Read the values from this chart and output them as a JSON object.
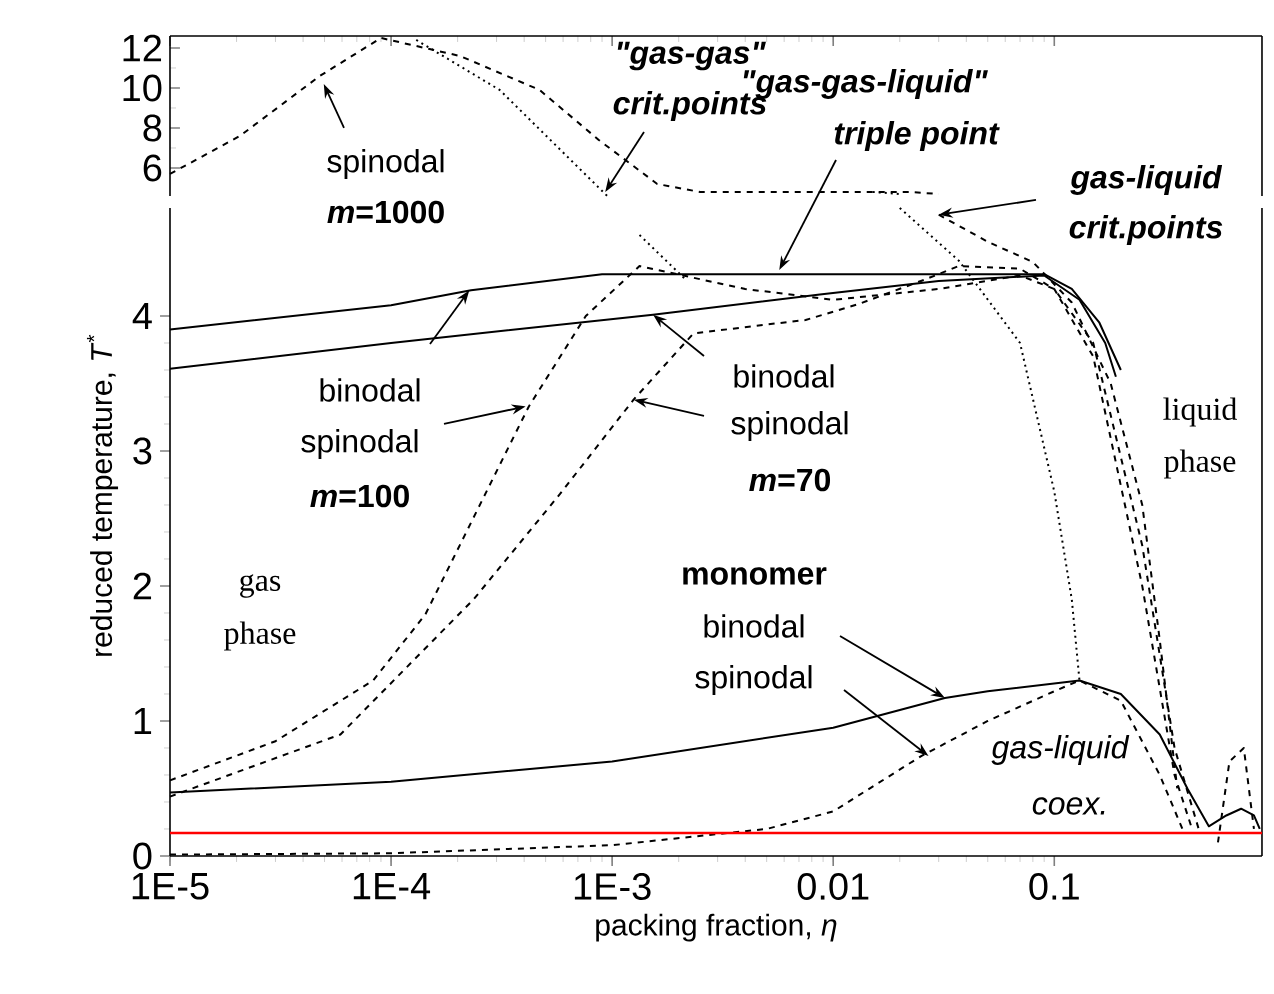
{
  "chart_data": [
    {
      "type": "line",
      "log": "x",
      "xlim": [
        1e-05,
        0.87
      ],
      "ylim": [
        4.6,
        12.6
      ],
      "tick_labels": "y",
      "xticks": [
        {
          "value": 1e-05,
          "label": null
        },
        {
          "value": 0.0001,
          "label": null
        },
        {
          "value": 0.001,
          "label": null
        },
        {
          "value": 0.01,
          "label": null
        },
        {
          "value": 0.1,
          "label": null
        }
      ],
      "yticks": [
        6,
        8,
        10,
        12
      ],
      "series": [
        {
          "color": "#000000",
          "line_style": "dashed",
          "x": [
            1e-05,
            2.07e-05,
            4.76e-05,
            9e-05,
            0.000205,
            0.00047,
            0.00087,
            0.0016,
            0.0025,
            0.01,
            0.022,
            0.03
          ],
          "values": [
            5.7,
            7.6,
            10.6,
            12.5,
            11.6,
            9.9,
            7.4,
            5.2,
            4.8,
            4.8,
            4.8,
            4.7
          ]
        },
        {
          "color": "#000000",
          "line_style": "dotted",
          "x": [
            0.00013,
            0.00031,
            0.00095
          ],
          "values": [
            12.4,
            9.9,
            4.6
          ]
        },
        {
          "color": "#000000",
          "line_style": "dotted",
          "x": [
            0.0151,
            0.02
          ],
          "values": [
            4.8,
            4.7
          ]
        }
      ],
      "annotations": [
        {
          "text": "spinodal",
          "x": 4.96e-05,
          "y": 10.2
        },
        "*m*=1000",
        "\"gas-gas\"",
        {
          "text": "crit.points",
          "x": 0.00093,
          "y": 4.8
        }
      ]
    },
    {
      "type": "line",
      "log": "x",
      "xlim": [
        1e-05,
        0.87
      ],
      "ylim": [
        0,
        4.8
      ],
      "xticks": [
        {
          "value": 1e-05,
          "label": "1E-5"
        },
        {
          "value": 0.0001,
          "label": "1E-4"
        },
        {
          "value": 0.001,
          "label": "1E-3"
        },
        0.01,
        0.1
      ],
      "yticks": [
        0,
        1,
        2,
        3,
        4
      ],
      "xlabel": "packing fraction, *η*",
      "ylabel": "reduced temperature, *T*$^{*}$",
      "series": [
        {
          "color": "#000000",
          "line_style": "solid",
          "x": [
            1e-05,
            0.0001,
            0.00023,
            0.0009,
            0.01,
            0.09,
            0.12,
            0.16,
            0.2
          ],
          "values": [
            3.9,
            4.08,
            4.19,
            4.31,
            4.31,
            4.31,
            4.2,
            3.95,
            3.6
          ]
        },
        {
          "color": "#000000",
          "line_style": "solid",
          "x": [
            1e-05,
            0.0001,
            0.00153,
            0.0087,
            0.03,
            0.09,
            0.13,
            0.17,
            0.19
          ],
          "values": [
            3.61,
            3.8,
            4.01,
            4.16,
            4.26,
            4.3,
            4.12,
            3.8,
            3.55
          ]
        },
        {
          "color": "#000000",
          "line_style": "dashed",
          "x": [
            1e-05,
            3e-05,
            8.3e-05,
            0.000143,
            0.00042,
            0.00076,
            0.00133,
            0.004,
            0.01,
            0.03,
            0.07,
            0.1,
            0.15,
            0.25,
            0.35,
            0.45
          ],
          "values": [
            0.56,
            0.85,
            1.3,
            1.79,
            3.33,
            4.0,
            4.37,
            4.2,
            4.12,
            4.2,
            4.3,
            4.2,
            3.8,
            2.3,
            0.8,
            0.2
          ]
        },
        {
          "color": "#000000",
          "line_style": "dashed",
          "x": [
            1e-05,
            5.9e-05,
            0.000236,
            0.00058,
            0.00125,
            0.00233,
            0.0046,
            0.0075,
            0.0131,
            0.026,
            0.037,
            0.07,
            0.1,
            0.15,
            0.25,
            0.35,
            0.42
          ],
          "values": [
            0.44,
            0.9,
            1.9,
            2.68,
            3.38,
            3.87,
            3.93,
            3.97,
            4.09,
            4.27,
            4.37,
            4.35,
            4.2,
            3.7,
            2.0,
            0.6,
            0.2
          ]
        },
        {
          "color": "#000000",
          "line_style": "dashed",
          "x": [
            0.03,
            0.05,
            0.08,
            0.12,
            0.18,
            0.25,
            0.3,
            0.36
          ],
          "values": [
            4.75,
            4.55,
            4.4,
            4.1,
            3.5,
            2.6,
            1.6,
            0.5
          ]
        },
        {
          "color": "#000000",
          "line_style": "solid",
          "x": [
            1e-05,
            0.0001,
            0.001,
            0.01,
            0.032,
            0.05,
            0.13,
            0.2,
            0.3,
            0.4,
            0.5,
            0.6,
            0.7,
            0.8,
            0.85
          ],
          "values": [
            0.47,
            0.55,
            0.7,
            0.95,
            1.17,
            1.22,
            1.3,
            1.2,
            0.9,
            0.5,
            0.22,
            0.3,
            0.35,
            0.3,
            0.2
          ]
        },
        {
          "color": "#000000",
          "line_style": "dashed",
          "x": [
            1e-05,
            0.0001,
            0.001,
            0.005,
            0.01,
            0.025,
            0.05,
            0.1,
            0.13,
            0.2,
            0.3,
            0.38
          ],
          "values": [
            0.01,
            0.02,
            0.08,
            0.2,
            0.33,
            0.74,
            1.0,
            1.22,
            1.3,
            1.15,
            0.6,
            0.2
          ]
        },
        {
          "color": "#000000",
          "line_style": "dashed",
          "x": [
            0.55,
            0.62,
            0.72,
            0.8
          ],
          "values": [
            0.1,
            0.7,
            0.8,
            0.2
          ]
        },
        {
          "color": "#000000",
          "line_style": "dotted",
          "x": [
            0.00133,
            0.00215
          ],
          "values": [
            4.6,
            4.27
          ]
        },
        {
          "color": "#000000",
          "line_style": "dotted",
          "x": [
            0.02,
            0.037,
            0.07,
            0.1,
            0.12,
            0.13
          ],
          "values": [
            4.8,
            4.41,
            3.8,
            2.7,
            1.9,
            1.3
          ]
        }
      ],
      "ref_lines": [
        {
          "axis": "y",
          "value": 0.17,
          "color": "#ff0000"
        }
      ],
      "annotations": [
        "\"gas-gas-liquid\"",
        {
          "text": "triple point",
          "x": 0.0057,
          "y": 4.34
        },
        {
          "text": "gas-liquid",
          "x": 0.03,
          "y": 4.75
        },
        "crit.points",
        {
          "text": "binodal",
          "x": 0.000226,
          "y": 4.19
        },
        {
          "text": "spinodal",
          "x": 0.000406,
          "y": 3.33
        },
        "*m*=100",
        {
          "text": "binodal",
          "x": 0.00153,
          "y": 4.01
        },
        {
          "text": "spinodal",
          "x": 0.00125,
          "y": 3.38
        },
        "*m*=70",
        "liquid",
        "phase",
        "gas",
        "phase",
        "monomer",
        {
          "text": "binodal",
          "x": 0.032,
          "y": 1.17
        },
        {
          "text": "spinodal",
          "x": 0.027,
          "y": 0.74
        },
        "gas-liquid",
        "coex."
      ]
    }
  ]
}
